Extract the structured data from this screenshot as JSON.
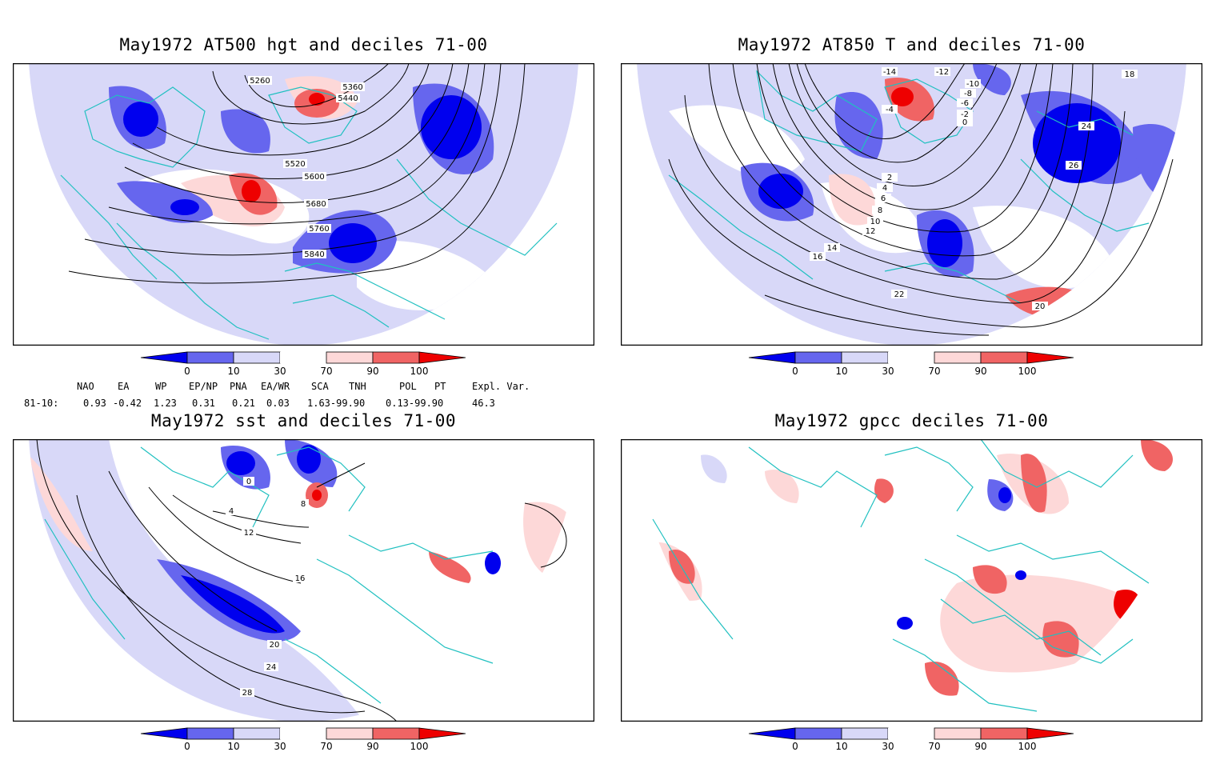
{
  "panels": [
    {
      "title": "May1972 AT500 hgt and deciles 71-00",
      "contour_labels": [
        "5260",
        "5360",
        "5440",
        "5520",
        "5600",
        "5680",
        "5760",
        "5840"
      ]
    },
    {
      "title": "May1972 AT850 T and deciles 71-00",
      "contour_labels": [
        "-14",
        "-12",
        "-10",
        "-8",
        "-6",
        "-4",
        "-2",
        "0",
        "2",
        "4",
        "6",
        "8",
        "10",
        "12",
        "14",
        "16",
        "18",
        "20",
        "22",
        "24",
        "26"
      ]
    },
    {
      "title": "May1972 sst and deciles 71-00",
      "contour_labels": [
        "0",
        "4",
        "8",
        "12",
        "16",
        "20",
        "24",
        "28"
      ]
    },
    {
      "title": "May1972 gpcc deciles 71-00",
      "contour_labels": []
    }
  ],
  "colorbar": {
    "ticks": [
      "0",
      "10",
      "30",
      "70",
      "90",
      "100"
    ],
    "colors": [
      "#0000ee",
      "#6666ee",
      "#d8d8f8",
      "#ffffff",
      "#fdd8d8",
      "#f06464",
      "#ee0000"
    ]
  },
  "indices": {
    "header": [
      "NAO",
      "EA",
      "WP",
      "EP/NP",
      "PNA",
      "EA/WR",
      "SCA",
      "TNH",
      "POL",
      "PT",
      "Expl. Var."
    ],
    "row_label": "81-10:",
    "values": [
      "0.93",
      "-0.42",
      "1.23",
      "0.31",
      "0.21",
      "0.03",
      "1.63-99.90",
      "0.13-99.90",
      "46.3"
    ]
  }
}
